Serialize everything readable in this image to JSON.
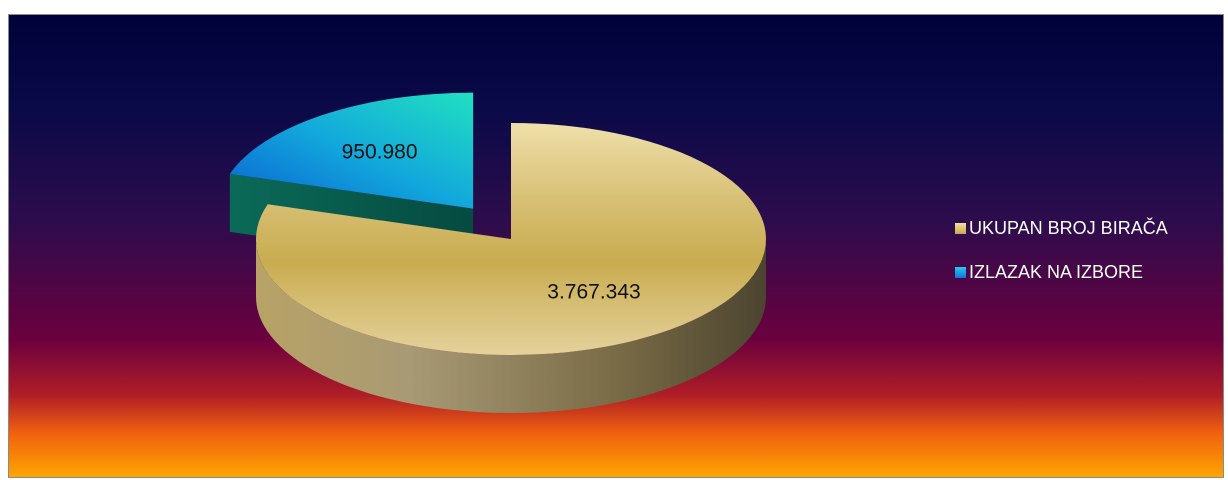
{
  "chart_data": {
    "type": "pie",
    "categories": [
      "UKUPAN BROJ BIRAČA",
      "IZLAZAK NA IZBORE"
    ],
    "values": [
      3767343,
      950980
    ],
    "value_labels": [
      "3.767.343",
      "950.980"
    ],
    "legend": "right",
    "exploded": "IZLAZAK NA IZBORE",
    "colors": {
      "UKUPAN BROJ BIRAČA": "#D8BE6E",
      "IZLAZAK NA IZBORE": "#1E9FE0"
    },
    "background_gradient": [
      "#00003A",
      "#2A0C4C",
      "#6C003E",
      "#E03010",
      "#FFA800"
    ]
  }
}
